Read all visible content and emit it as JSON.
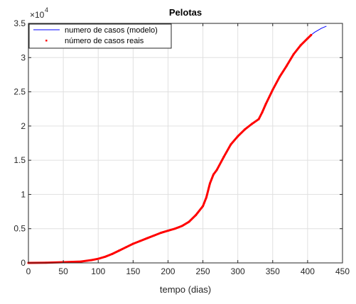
{
  "chart_data": {
    "type": "line",
    "title": "Pelotas",
    "xlabel": "tempo (dias)",
    "ylabel": "",
    "y_exponent_label": "×10",
    "y_exponent_power": "4",
    "xlim": [
      0,
      450
    ],
    "ylim": [
      0,
      35000
    ],
    "grid": true,
    "legend_position": "top-left",
    "x_ticks": [
      0,
      50,
      100,
      150,
      200,
      250,
      300,
      350,
      400,
      450
    ],
    "x_tick_labels": [
      "0",
      "50",
      "100",
      "150",
      "200",
      "250",
      "300",
      "350",
      "400",
      "450"
    ],
    "y_ticks": [
      0,
      5000,
      10000,
      15000,
      20000,
      25000,
      30000,
      35000
    ],
    "y_tick_labels": [
      "0",
      "0.5",
      "1",
      "1.5",
      "2",
      "2.5",
      "3",
      "3.5"
    ],
    "series": [
      {
        "name": "numero de casos (modelo)",
        "style": "line",
        "color": "#0000ff",
        "x": [
          0,
          25,
          50,
          75,
          90,
          100,
          110,
          120,
          130,
          140,
          150,
          160,
          170,
          180,
          190,
          200,
          210,
          220,
          230,
          240,
          250,
          255,
          260,
          265,
          270,
          280,
          290,
          300,
          310,
          320,
          330,
          335,
          340,
          350,
          360,
          370,
          380,
          390,
          400,
          405,
          410,
          415,
          420,
          427
        ],
        "y": [
          0,
          30,
          100,
          200,
          400,
          600,
          900,
          1300,
          1800,
          2300,
          2800,
          3200,
          3600,
          4000,
          4400,
          4700,
          5000,
          5400,
          6000,
          7000,
          8300,
          9600,
          11600,
          12900,
          13600,
          15500,
          17300,
          18500,
          19500,
          20300,
          21000,
          22000,
          23200,
          25300,
          27200,
          28800,
          30500,
          31800,
          32800,
          33300,
          33700,
          34000,
          34300,
          34600
        ]
      },
      {
        "name": "número de casos reais",
        "style": "markers",
        "color": "#ff0000",
        "x": [
          0,
          25,
          50,
          75,
          90,
          100,
          110,
          120,
          130,
          140,
          150,
          160,
          170,
          180,
          190,
          200,
          210,
          220,
          230,
          240,
          250,
          255,
          260,
          265,
          270,
          280,
          290,
          300,
          310,
          320,
          330,
          335,
          340,
          350,
          360,
          370,
          380,
          390,
          400,
          405
        ],
        "y": [
          0,
          30,
          100,
          200,
          400,
          600,
          900,
          1300,
          1800,
          2300,
          2800,
          3200,
          3600,
          4000,
          4400,
          4700,
          5000,
          5400,
          6000,
          7000,
          8300,
          9600,
          11600,
          12900,
          13600,
          15500,
          17300,
          18500,
          19500,
          20300,
          21000,
          22000,
          23200,
          25300,
          27200,
          28800,
          30500,
          31800,
          32800,
          33300
        ]
      }
    ]
  }
}
